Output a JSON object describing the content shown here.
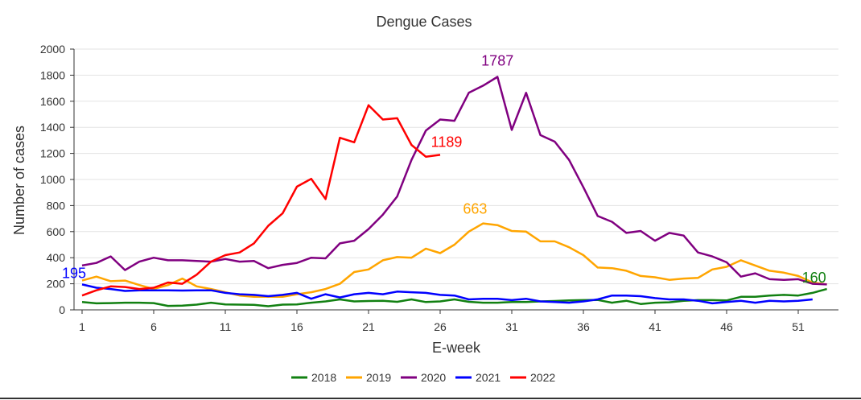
{
  "chart_data": {
    "type": "line",
    "title": "Dengue Cases",
    "xlabel": "E-week",
    "ylabel": "Number of cases",
    "xlim": [
      1,
      53
    ],
    "ylim": [
      0,
      2000
    ],
    "yticks": [
      "0",
      "200",
      "400",
      "600",
      "800",
      "1000",
      "1200",
      "1400",
      "1600",
      "1800",
      "2000"
    ],
    "xticks": [
      "1",
      "6",
      "11",
      "16",
      "21",
      "26",
      "31",
      "36",
      "41",
      "46",
      "51"
    ],
    "grid": true,
    "legend_position": "bottom",
    "series": [
      {
        "name": "2018",
        "color": "#118011",
        "values": [
          60,
          50,
          52,
          55,
          55,
          52,
          30,
          32,
          40,
          55,
          42,
          40,
          38,
          28,
          40,
          42,
          55,
          65,
          80,
          65,
          68,
          70,
          62,
          80,
          60,
          65,
          80,
          62,
          55,
          55,
          60,
          60,
          65,
          68,
          72,
          75,
          76,
          55,
          70,
          45,
          55,
          58,
          70,
          75,
          75,
          72,
          100,
          100,
          110,
          115,
          110,
          130,
          160
        ]
      },
      {
        "name": "2019",
        "color": "#FFA500",
        "values": [
          225,
          255,
          220,
          225,
          190,
          160,
          190,
          240,
          180,
          160,
          135,
          110,
          100,
          100,
          100,
          120,
          135,
          160,
          200,
          290,
          310,
          380,
          405,
          400,
          470,
          435,
          500,
          600,
          663,
          650,
          605,
          600,
          525,
          525,
          480,
          420,
          325,
          320,
          300,
          260,
          250,
          230,
          240,
          245,
          310,
          330,
          380,
          340,
          300,
          285,
          260,
          210,
          195
        ]
      },
      {
        "name": "2020",
        "color": "#800080",
        "values": [
          340,
          360,
          410,
          305,
          370,
          400,
          380,
          380,
          375,
          370,
          390,
          370,
          375,
          320,
          345,
          360,
          400,
          395,
          510,
          530,
          620,
          730,
          870,
          1150,
          1375,
          1460,
          1450,
          1665,
          1720,
          1787,
          1380,
          1665,
          1340,
          1290,
          1150,
          940,
          720,
          675,
          590,
          605,
          530,
          590,
          570,
          440,
          410,
          365,
          255,
          280,
          235,
          230,
          235,
          200,
          195
        ]
      },
      {
        "name": "2021",
        "color": "#0000FF",
        "values": [
          195,
          170,
          160,
          145,
          150,
          150,
          150,
          148,
          150,
          150,
          130,
          120,
          115,
          105,
          115,
          130,
          85,
          120,
          95,
          120,
          130,
          120,
          140,
          135,
          130,
          115,
          110,
          80,
          85,
          85,
          75,
          85,
          65,
          60,
          55,
          65,
          80,
          110,
          110,
          105,
          90,
          80,
          80,
          70,
          50,
          60,
          70,
          55,
          70,
          65,
          70,
          80
        ]
      },
      {
        "name": "2022",
        "color": "#FF0000",
        "values": [
          110,
          150,
          180,
          175,
          160,
          170,
          210,
          200,
          270,
          370,
          420,
          440,
          510,
          645,
          740,
          945,
          1005,
          850,
          1320,
          1285,
          1570,
          1460,
          1470,
          1265,
          1175,
          1189
        ]
      }
    ],
    "annotations": [
      {
        "text": "195",
        "series": "2021",
        "x": 1,
        "y": 195,
        "color": "#0000FF"
      },
      {
        "text": "1787",
        "series": "2020",
        "x": 30,
        "y": 1787,
        "color": "#800080"
      },
      {
        "text": "1189",
        "series": "2022",
        "x": 26,
        "y": 1189,
        "color": "#FF0000"
      },
      {
        "text": "663",
        "series": "2019",
        "x": 29,
        "y": 663,
        "color": "#FFA500"
      },
      {
        "text": "160",
        "series": "2018",
        "x": 53,
        "y": 160,
        "color": "#118011"
      }
    ]
  }
}
